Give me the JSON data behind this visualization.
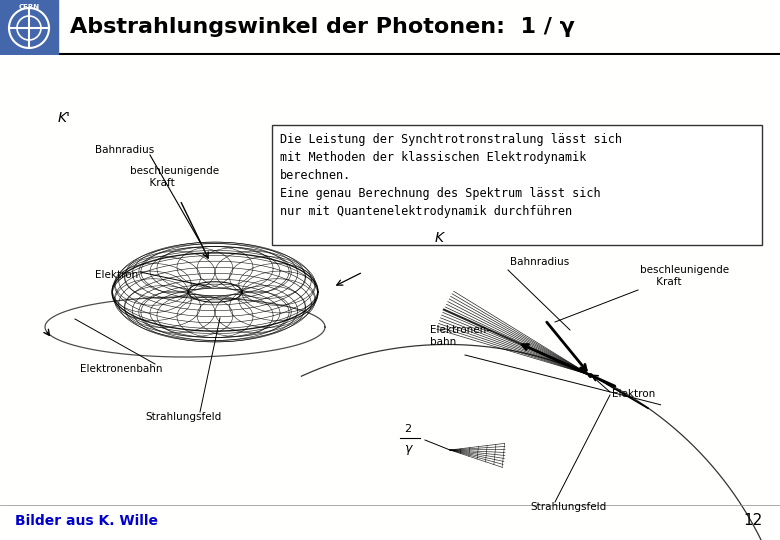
{
  "title": "Abstrahlungswinkel der Photonen:  1 / γ",
  "header_bg": "#FFFFCC",
  "slide_bg": "#FFFFFА",
  "title_color": "#000000",
  "title_fontsize": 16,
  "text_box_lines": [
    "Die Leistung der Synchtrotronstralung lässt sich",
    "mit Methoden der klassischen Elektrodynamik",
    "berechnen.",
    "Eine genau Berechnung des Spektrum lässt sich",
    "nur mit Quantenelektrodynamik durchführen"
  ],
  "footer_text": "Bilder aus K. Wille",
  "footer_color": "#0000CC",
  "page_number": "12"
}
